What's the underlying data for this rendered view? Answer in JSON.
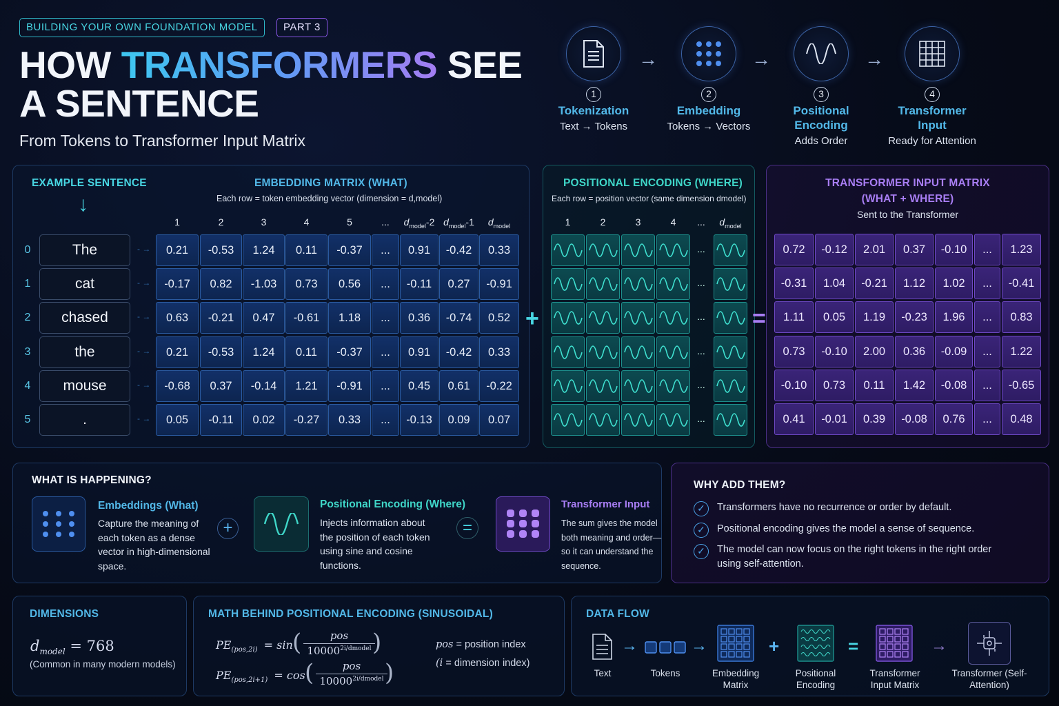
{
  "header": {
    "tag_series": "BUILDING YOUR OWN FOUNDATION MODEL",
    "tag_part": "PART 3",
    "title_a": "HOW ",
    "title_b": "TRANSFORMERS",
    "title_c": " SEE",
    "title_d": "A SENTENCE",
    "subtitle": "From Tokens to Transformer Input Matrix"
  },
  "steps": [
    {
      "num": "1",
      "name": "Tokenization",
      "desc": "Text → Tokens"
    },
    {
      "num": "2",
      "name": "Embedding",
      "desc": "Tokens → Vectors"
    },
    {
      "num": "3",
      "name": "Positional Encoding",
      "desc": "Adds Order"
    },
    {
      "num": "4",
      "name": "Transformer Input",
      "desc": "Ready for Attention"
    }
  ],
  "example": {
    "heading": "EXAMPLE SENTENCE",
    "indices": [
      "0",
      "1",
      "2",
      "3",
      "4",
      "5"
    ],
    "tokens": [
      "The",
      "cat",
      "chased",
      "the",
      "mouse",
      "."
    ]
  },
  "embedding": {
    "heading": "EMBEDDING MATRIX (WHAT)",
    "sub": "Each row = token embedding vector (dimension = d,model)",
    "cols": [
      "1",
      "2",
      "3",
      "4",
      "5",
      "...",
      "dmodel-2",
      "dmodel-1",
      "dmodel"
    ],
    "rows": [
      [
        "0.21",
        "-0.53",
        "1.24",
        "0.11",
        "-0.37",
        "...",
        "0.91",
        "-0.42",
        "0.33"
      ],
      [
        "-0.17",
        "0.82",
        "-1.03",
        "0.73",
        "0.56",
        "...",
        "-0.11",
        "0.27",
        "-0.91"
      ],
      [
        "0.63",
        "-0.21",
        "0.47",
        "-0.61",
        "1.18",
        "...",
        "0.36",
        "-0.74",
        "0.52"
      ],
      [
        "0.21",
        "-0.53",
        "1.24",
        "0.11",
        "-0.37",
        "...",
        "0.91",
        "-0.42",
        "0.33"
      ],
      [
        "-0.68",
        "0.37",
        "-0.14",
        "1.21",
        "-0.91",
        "...",
        "0.45",
        "0.61",
        "-0.22"
      ],
      [
        "0.05",
        "-0.11",
        "0.02",
        "-0.27",
        "0.33",
        "...",
        "-0.13",
        "0.09",
        "0.07"
      ]
    ]
  },
  "positional": {
    "heading": "POSITIONAL ENCODING (WHERE)",
    "sub": "Each row = position vector (same dimension dmodel)",
    "cols": [
      "1",
      "2",
      "3",
      "4",
      "...",
      "dmodel"
    ]
  },
  "input_matrix": {
    "heading_1": "TRANSFORMER INPUT MATRIX",
    "heading_2": "(WHAT + WHERE)",
    "sub": "Sent to the Transformer",
    "rows": [
      [
        "0.72",
        "-0.12",
        "2.01",
        "0.37",
        "-0.10",
        "...",
        "1.23"
      ],
      [
        "-0.31",
        "1.04",
        "-0.21",
        "1.12",
        "1.02",
        "...",
        "-0.41"
      ],
      [
        "1.11",
        "0.05",
        "1.19",
        "-0.23",
        "1.96",
        "...",
        "0.83"
      ],
      [
        "0.73",
        "-0.10",
        "2.00",
        "0.36",
        "-0.09",
        "...",
        "1.22"
      ],
      [
        "-0.10",
        "0.73",
        "0.11",
        "1.42",
        "-0.08",
        "...",
        "-0.65"
      ],
      [
        "0.41",
        "-0.01",
        "0.39",
        "-0.08",
        "0.76",
        "...",
        "0.48"
      ]
    ]
  },
  "operators": {
    "plus": "+",
    "equals": "="
  },
  "happening": {
    "heading": "WHAT IS HAPPENING?",
    "emb_title": "Embeddings (What)",
    "emb_text": [
      "Capture the meaning of",
      "each token as a dense",
      "vector in high-dimensional",
      "space."
    ],
    "pos_title": "Positional Encoding (Where)",
    "pos_text": [
      "Injects information about",
      "the position of each token",
      "using sine and cosine",
      "functions."
    ],
    "ti_title": "Transformer Input",
    "ti_text": [
      "The sum gives the model",
      "both meaning and order—",
      "so it can understand the",
      "sequence."
    ]
  },
  "why": {
    "heading": "WHY ADD THEM?",
    "items": [
      "Transformers have no recurrence or order by default.",
      "Positional encoding gives the model a sense of sequence.",
      "The model can now focus on the right tokens in the right order"
    ],
    "item_cont": "using self-attention."
  },
  "dimensions": {
    "heading": "DIMENSIONS",
    "d": "d",
    "d_sub": "model",
    "eq": " = 768",
    "note": "(Common in many modern models)"
  },
  "math": {
    "heading": "MATH BEHIND POSITIONAL ENCODING (SINUSOIDAL)",
    "l1_lhs": "PE",
    "l1_sub": "(pos,2i)",
    "l1_fn": "= sin",
    "l2_lhs": "PE",
    "l2_sub": "(pos,2i+1)",
    "l2_fn": "= cos",
    "num": "pos",
    "den": "10000",
    "exp": "2i/dmodel",
    "def1_var": "pos",
    "def1_txt": " = position index",
    "def2_var": "(i",
    "def2_txt": " = dimension index)"
  },
  "dataflow": {
    "heading": "DATA FLOW",
    "labels": [
      "Text",
      "Tokens",
      "Embedding Matrix",
      "Positional Encoding",
      "Transformer Input Matrix",
      "Transformer (Self-Attention)"
    ]
  },
  "colors": {
    "cyan": "#48d6e3",
    "blue": "#52b8e8",
    "teal": "#3fd6c8",
    "purple": "#a97ef5"
  }
}
